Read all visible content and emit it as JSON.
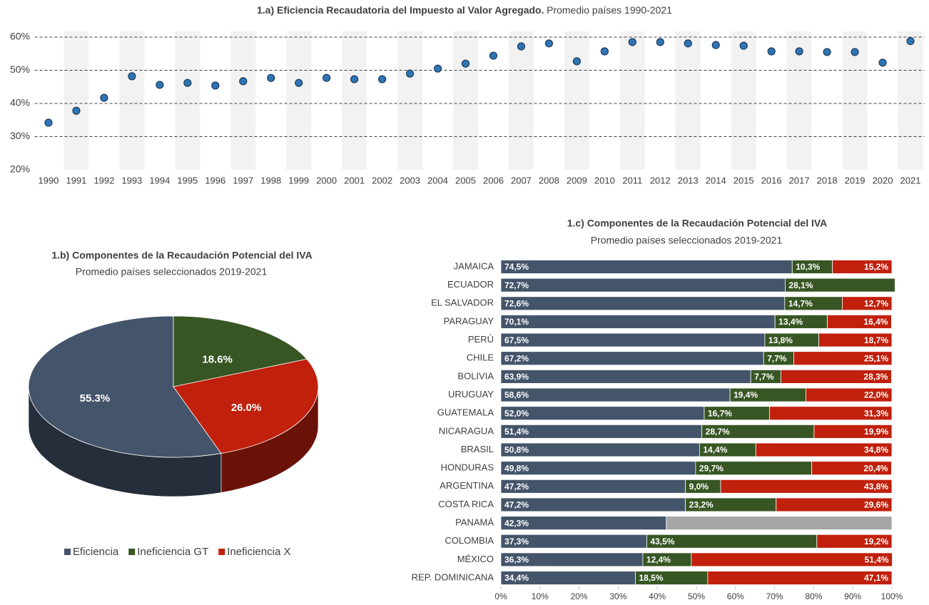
{
  "chart_data": [
    {
      "type": "dot",
      "title": "1.a) Eficiencia Recaudatoria del Impuesto al Valor Agregado.",
      "subtitle": "Promedio países 1990-2021",
      "categories": [
        "1990",
        "1991",
        "1992",
        "1993",
        "1994",
        "1995",
        "1996",
        "1997",
        "1998",
        "1999",
        "2000",
        "2001",
        "2002",
        "2003",
        "2004",
        "2005",
        "2006",
        "2007",
        "2008",
        "2009",
        "2010",
        "2011",
        "2012",
        "2013",
        "2014",
        "2015",
        "2016",
        "2017",
        "2018",
        "2019",
        "2020",
        "2021"
      ],
      "values": [
        34.2,
        37.8,
        41.7,
        48.2,
        45.6,
        46.2,
        45.4,
        46.7,
        47.7,
        46.2,
        47.7,
        47.3,
        47.3,
        49.0,
        50.5,
        52.0,
        54.4,
        57.2,
        58.1,
        52.7,
        55.7,
        58.5,
        58.5,
        58.1,
        57.6,
        57.4,
        55.7,
        55.7,
        55.5,
        55.5,
        52.3,
        58.8
      ],
      "color": "#2e75b6",
      "ylim": [
        20,
        60
      ],
      "yticks": [
        {
          "value": 20,
          "label": "20%"
        },
        {
          "value": 30,
          "label": "30%"
        },
        {
          "value": 40,
          "label": "40%"
        },
        {
          "value": 50,
          "label": "50%"
        },
        {
          "value": 60,
          "label": "60%"
        }
      ],
      "grid": true
    },
    {
      "type": "pie",
      "title": "1.b) Componentes de la Recaudación Potencial del IVA",
      "subtitle": "Promedio países seleccionados 2019-2021",
      "categories": [
        "Eficiencia",
        "Ineficiencia GT",
        "Ineficiencia X"
      ],
      "values": [
        55.3,
        18.6,
        26.0
      ],
      "value_labels": [
        "55.3%",
        "18.6%",
        "26.0%"
      ],
      "colors": [
        "#44546a",
        "#375623",
        "#c0200c"
      ],
      "legend": "bottom"
    },
    {
      "type": "stackedbar",
      "title": "1.c) Componentes de la Recaudación Potencial del IVA",
      "subtitle": "Promedio países seleccionados 2019-2021",
      "categories": [
        "JAMAICA",
        "ECUADOR",
        "EL SALVADOR",
        "PARAGUAY",
        "PERÚ",
        "CHILE",
        "BOLIVIA",
        "URUGUAY",
        "GUATEMALA",
        "NICARAGUA",
        "BRASIL",
        "HONDURAS",
        "ARGENTINA",
        "COSTA RICA",
        "PANAMÁ",
        "COLOMBIA",
        "MÉXICO",
        "REP. DOMINICANA"
      ],
      "series": [
        {
          "color": "#44546a",
          "values": [
            74.5,
            72.7,
            72.6,
            70.1,
            67.5,
            67.2,
            63.9,
            58.6,
            52.0,
            51.4,
            50.8,
            49.8,
            47.2,
            47.2,
            42.3,
            37.3,
            36.3,
            34.4
          ],
          "value_labels": [
            "74,5%",
            "72,7%",
            "72,6%",
            "70,1%",
            "67,5%",
            "67,2%",
            "63,9%",
            "58,6%",
            "52,0%",
            "51,4%",
            "50,8%",
            "49,8%",
            "47,2%",
            "47,2%",
            "42,3%",
            "37,3%",
            "36,3%",
            "34,4%"
          ]
        },
        {
          "color": "#375623",
          "values": [
            10.3,
            28.1,
            14.7,
            13.4,
            13.8,
            7.7,
            7.7,
            19.4,
            16.7,
            28.7,
            14.4,
            29.7,
            9.0,
            23.2,
            null,
            43.5,
            12.4,
            18.5
          ],
          "value_labels": [
            "10,3%",
            "28,1%",
            "14,7%",
            "13,4%",
            "13,8%",
            "7,7%",
            "7,7%",
            "19,4%",
            "16,7%",
            "28,7%",
            "14,4%",
            "29,7%",
            "9,0%",
            "23,2%",
            null,
            "43,5%",
            "12,4%",
            "18,5%"
          ]
        },
        {
          "color": "#c0200c",
          "values": [
            15.2,
            null,
            12.7,
            16.4,
            18.7,
            25.1,
            28.3,
            22.0,
            31.3,
            19.9,
            34.8,
            20.4,
            43.8,
            29.6,
            null,
            19.2,
            51.4,
            47.1
          ],
          "value_labels": [
            "15,2%",
            null,
            "12,7%",
            "16,4%",
            "18,7%",
            "25,1%",
            "28,3%",
            "22,0%",
            "31,3%",
            "19,9%",
            "34,8%",
            "20,4%",
            "43,8%",
            "29,6%",
            null,
            "19,2%",
            "51,4%",
            "47,1%"
          ]
        }
      ],
      "missing_color": "#a6a6a6",
      "xlim": [
        0,
        100
      ],
      "xticks": [
        {
          "value": 0,
          "label": "0%"
        },
        {
          "value": 10,
          "label": "10%"
        },
        {
          "value": 20,
          "label": "20%"
        },
        {
          "value": 30,
          "label": "30%"
        },
        {
          "value": 40,
          "label": "40%"
        },
        {
          "value": 50,
          "label": "50%"
        },
        {
          "value": 60,
          "label": "60%"
        },
        {
          "value": 70,
          "label": "70%"
        },
        {
          "value": 80,
          "label": "80%"
        },
        {
          "value": 90,
          "label": "90%"
        },
        {
          "value": 100,
          "label": "100%"
        }
      ]
    }
  ]
}
